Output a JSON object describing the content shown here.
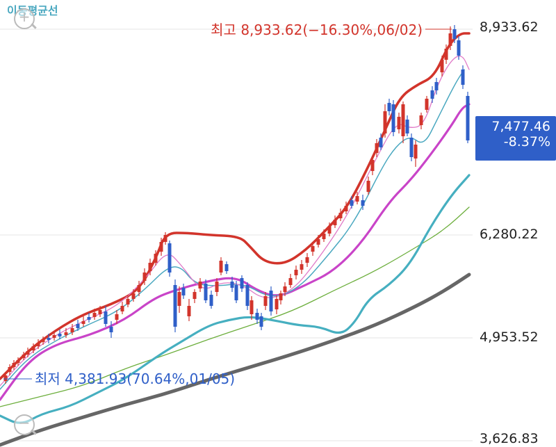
{
  "top_link": "이동평균선",
  "current_value": "7,477.46",
  "current_change": "-8.37%",
  "chart_data": {
    "type": "line",
    "title": "",
    "y_axis": {
      "ticks": [
        "8,933.62",
        "6,280.22",
        "4,953.52",
        "3,626.83"
      ],
      "tick_values": [
        8933.62,
        6280.22,
        4953.52,
        3626.83
      ],
      "range": [
        3626.83,
        9600
      ]
    },
    "annotations": {
      "high": "최고 8,933.62(−16.30%,06/02)",
      "low": "최저 4,381.93(70.64%,01/05)"
    },
    "bands": {
      "upper": {
        "color": "#d2342b"
      },
      "lower": {
        "color": "#46afc0"
      }
    },
    "series": [
      {
        "color": "#c944c8",
        "role": "mid"
      },
      {
        "color": "#4aa8c0",
        "role": "ma-short"
      },
      {
        "color": "#e07ac8",
        "role": "ma-fast"
      },
      {
        "color": "#6cae3c",
        "role": "ma-long"
      },
      {
        "color": "#666666",
        "role": "ma-longest"
      }
    ],
    "candle_colors": {
      "up": "#d2342b",
      "down": "#2f5fc8"
    }
  }
}
